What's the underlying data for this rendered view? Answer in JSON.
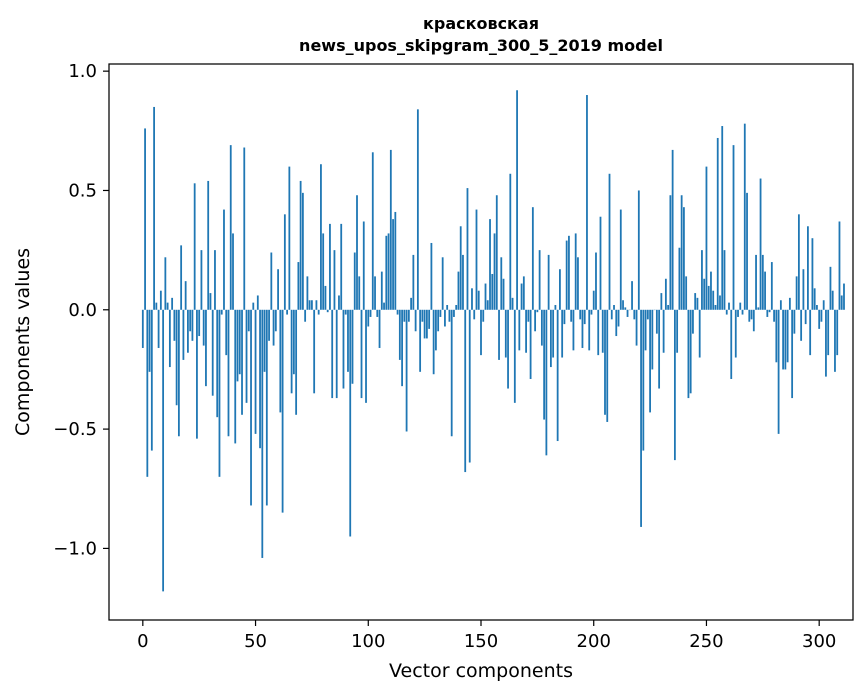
{
  "chart_data": {
    "type": "bar",
    "title_line1": "красковская",
    "title_line2": "news_upos_skipgram_300_5_2019 model",
    "xlabel": "Vector components",
    "ylabel": "Components values",
    "xlim": [
      -15,
      315
    ],
    "ylim": [
      -1.3,
      1.03
    ],
    "xticks": [
      0,
      50,
      100,
      150,
      200,
      250,
      300
    ],
    "xtick_labels": [
      "0",
      "50",
      "100",
      "150",
      "200",
      "250",
      "300"
    ],
    "yticks": [
      -1.0,
      -0.5,
      0.0,
      0.5,
      1.0
    ],
    "ytick_labels": [
      "−1.0",
      "−0.5",
      "0.0",
      "0.5",
      "1.0"
    ],
    "grid": false,
    "bar_color": "#1f77b4",
    "values": [
      -0.16,
      0.76,
      -0.7,
      -0.26,
      -0.59,
      0.85,
      0.03,
      -0.16,
      0.08,
      -1.18,
      0.22,
      0.03,
      -0.24,
      0.05,
      -0.13,
      -0.4,
      -0.53,
      0.27,
      -0.21,
      0.12,
      -0.18,
      -0.09,
      -0.13,
      0.53,
      -0.54,
      -0.11,
      0.25,
      -0.15,
      -0.32,
      0.54,
      0.07,
      -0.36,
      0.25,
      -0.45,
      -0.7,
      -0.02,
      0.42,
      -0.19,
      -0.53,
      0.69,
      0.32,
      -0.56,
      -0.3,
      -0.27,
      -0.44,
      0.68,
      -0.39,
      -0.09,
      -0.82,
      0.03,
      -0.52,
      0.06,
      -0.58,
      -1.04,
      -0.26,
      -0.82,
      -0.13,
      0.24,
      -0.15,
      -0.09,
      0.17,
      -0.43,
      -0.85,
      0.4,
      -0.02,
      0.6,
      -0.35,
      -0.27,
      -0.44,
      0.2,
      0.54,
      0.49,
      -0.05,
      0.14,
      0.04,
      0.04,
      -0.35,
      0.04,
      -0.02,
      0.61,
      0.32,
      0.1,
      -0.01,
      0.36,
      -0.37,
      0.25,
      -0.37,
      0.06,
      0.36,
      -0.33,
      -0.02,
      -0.26,
      -0.95,
      -0.31,
      0.24,
      0.48,
      0.14,
      -0.37,
      0.37,
      -0.39,
      -0.07,
      -0.03,
      0.66,
      0.14,
      -0.03,
      -0.16,
      0.16,
      0.03,
      0.31,
      0.32,
      0.67,
      0.38,
      0.41,
      -0.02,
      -0.21,
      -0.32,
      -0.05,
      -0.51,
      -0.05,
      0.05,
      0.23,
      -0.09,
      0.84,
      -0.26,
      -0.05,
      -0.12,
      -0.12,
      -0.08,
      0.28,
      -0.27,
      -0.17,
      -0.09,
      -0.03,
      0.22,
      -0.07,
      0.02,
      -0.05,
      -0.53,
      -0.03,
      0.02,
      0.16,
      0.35,
      0.23,
      -0.68,
      0.51,
      -0.64,
      0.09,
      -0.04,
      0.42,
      0.08,
      -0.19,
      -0.05,
      0.11,
      0.04,
      0.38,
      0.15,
      0.32,
      0.48,
      -0.21,
      0.22,
      0.13,
      -0.2,
      -0.33,
      0.57,
      0.05,
      -0.39,
      0.92,
      -0.17,
      0.11,
      0.14,
      -0.18,
      -0.05,
      -0.29,
      0.43,
      -0.09,
      -0.01,
      0.25,
      -0.15,
      -0.46,
      -0.61,
      0.23,
      -0.24,
      -0.2,
      0.02,
      -0.55,
      0.17,
      -0.2,
      -0.06,
      0.29,
      0.31,
      -0.05,
      -0.17,
      0.32,
      0.22,
      -0.04,
      -0.16,
      -0.06,
      0.9,
      -0.17,
      -0.02,
      0.08,
      0.24,
      -0.19,
      0.39,
      -0.18,
      -0.44,
      -0.47,
      0.57,
      -0.04,
      0.02,
      -0.11,
      -0.07,
      0.42,
      0.04,
      0.01,
      -0.03,
      0.0,
      0.12,
      -0.04,
      -0.15,
      0.5,
      -0.91,
      -0.59,
      -0.17,
      -0.04,
      -0.43,
      -0.25,
      0.0,
      -0.1,
      -0.33,
      0.07,
      -0.18,
      0.13,
      0.02,
      0.48,
      0.67,
      -0.63,
      -0.18,
      0.26,
      0.48,
      0.43,
      0.14,
      -0.37,
      -0.35,
      -0.1,
      0.07,
      0.05,
      -0.2,
      0.25,
      0.13,
      0.6,
      0.1,
      0.16,
      0.08,
      0.02,
      0.72,
      0.06,
      0.77,
      0.25,
      -0.02,
      0.03,
      -0.29,
      0.69,
      -0.2,
      -0.03,
      0.03,
      -0.02,
      0.78,
      0.49,
      -0.05,
      -0.04,
      -0.09,
      0.23,
      0.01,
      0.55,
      0.23,
      0.16,
      -0.03,
      -0.01,
      0.2,
      -0.05,
      -0.22,
      -0.52,
      0.04,
      -0.25,
      -0.25,
      -0.22,
      0.05,
      -0.37,
      -0.1,
      0.14,
      0.4,
      -0.13,
      0.17,
      -0.06,
      0.35,
      -0.19,
      0.3,
      0.09,
      0.02,
      -0.08,
      -0.05,
      0.04,
      -0.28,
      -0.19,
      0.18,
      0.08,
      -0.26,
      -0.19,
      0.37,
      0.06,
      0.11
    ]
  }
}
